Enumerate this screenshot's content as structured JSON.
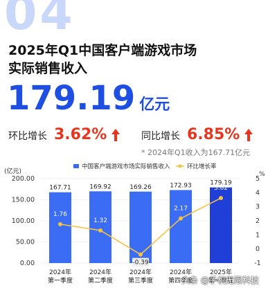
{
  "header": {
    "index_number": "04",
    "title_line1": "2025年Q1中国客户端游戏市场",
    "title_line2": "实际销售收入"
  },
  "headline": {
    "value": "179.19",
    "unit": "亿元"
  },
  "qoq": {
    "label": "环比增长",
    "value": "3.62%"
  },
  "yoy": {
    "label": "同比增长",
    "value": "6.85%"
  },
  "note": "* 2024年Q1收入为167.71亿元",
  "colors": {
    "brand_blue": "#1f4fe0",
    "bar_blue": "#3a6cf4",
    "bar_dark": "#1f3fd6",
    "line_yellow": "#f4c342",
    "growth_red": "#e8361e"
  },
  "chart_data": {
    "type": "bar",
    "categories": [
      "2024年\n第一季度",
      "2024年\n第二季度",
      "2024年\n第三季度",
      "2024年\n第四季度",
      "2025年\n第一季度"
    ],
    "series": [
      {
        "name": "中国客户端游戏市场实际销售收入",
        "type": "bar",
        "axis": "left",
        "values": [
          167.71,
          169.92,
          169.26,
          172.93,
          179.19
        ]
      },
      {
        "name": "环比增长率",
        "type": "line",
        "axis": "right",
        "values": [
          1.76,
          1.32,
          -0.39,
          2.17,
          3.62
        ]
      }
    ],
    "ylabel_left": "亿元",
    "ylabel_right": "%",
    "ylim_left": [
      0,
      200
    ],
    "yticks_left": [
      "0.00",
      "50.00",
      "100.00",
      "150.00",
      "200.00"
    ],
    "ylim_right": [
      -1,
      5
    ],
    "yticks_right": [
      "-1",
      "0",
      "1",
      "2",
      "3",
      "4",
      "5"
    ],
    "legend": "top"
  },
  "watermark": "头条 @手机无限科技"
}
